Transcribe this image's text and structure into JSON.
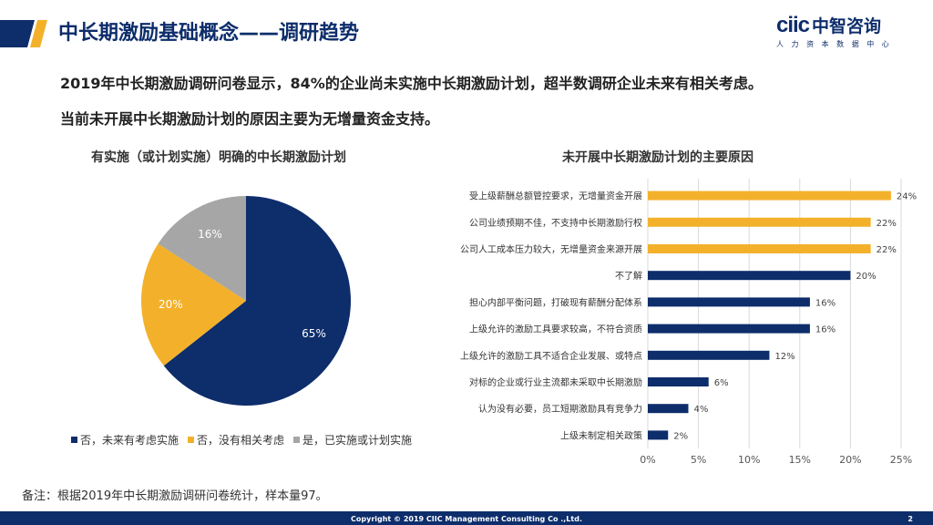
{
  "slide": {
    "title": "中长期激励基础概念——调研趋势",
    "lead_line1": "2019年中长期激励调研问卷显示，84%的企业尚未实施中长期激励计划，超半数调研企业未来有相关考虑。",
    "lead_line2": "当前未开展中长期激励计划的原因主要为无增量资金支持。",
    "note": "备注：根据2019年中长期激励调研问卷统计，样本量97。",
    "copyright": "Copyright © 2019 CIIC Management Consulting Co .,Ltd.",
    "page_number": "2"
  },
  "logo": {
    "mark": "ciic",
    "name_cn": "中智咨询",
    "tagline": "人 力 资 本 数 据 中 心"
  },
  "colors": {
    "navy": "#0d2d6b",
    "gold": "#f3b12b",
    "gray": "#a6a6a6"
  },
  "chart_data": [
    {
      "type": "pie",
      "title": "有实施（或计划实施）明确的中长期激励计划",
      "slices": [
        {
          "name": "否，未来有考虑实施",
          "value": 65,
          "label": "65%",
          "color": "#0d2d6b"
        },
        {
          "name": "否，没有相关考虑",
          "value": 20,
          "label": "20%",
          "color": "#f3b12b"
        },
        {
          "name": "是，已实施或计划实施",
          "value": 16,
          "label": "16%",
          "color": "#a6a6a6"
        }
      ]
    },
    {
      "type": "bar",
      "orientation": "horizontal",
      "title": "未开展中长期激励计划的主要原因",
      "categories": [
        "受上级薪酬总额管控要求，无增量资金开展",
        "公司业绩预期不佳，不支持中长期激励行权",
        "公司人工成本压力较大，无增量资金来源开展",
        "不了解",
        "担心内部平衡问题，打破现有薪酬分配体系",
        "上级允许的激励工具要求较高，不符合资质",
        "上级允许的激励工具不适合企业发展、或特点",
        "对标的企业或行业主流都未采取中长期激励",
        "认为没有必要，员工短期激励具有竞争力",
        "上级未制定相关政策"
      ],
      "values": [
        24,
        22,
        22,
        20,
        16,
        16,
        12,
        6,
        4,
        2
      ],
      "value_labels": [
        "24%",
        "22%",
        "22%",
        "20%",
        "16%",
        "16%",
        "12%",
        "6%",
        "4%",
        "2%"
      ],
      "colors": [
        "#f3b12b",
        "#f3b12b",
        "#f3b12b",
        "#0d2d6b",
        "#0d2d6b",
        "#0d2d6b",
        "#0d2d6b",
        "#0d2d6b",
        "#0d2d6b",
        "#0d2d6b"
      ],
      "xlim": [
        0,
        25
      ],
      "xticks": [
        "0%",
        "5%",
        "10%",
        "15%",
        "20%",
        "25%"
      ],
      "grid": true
    }
  ]
}
